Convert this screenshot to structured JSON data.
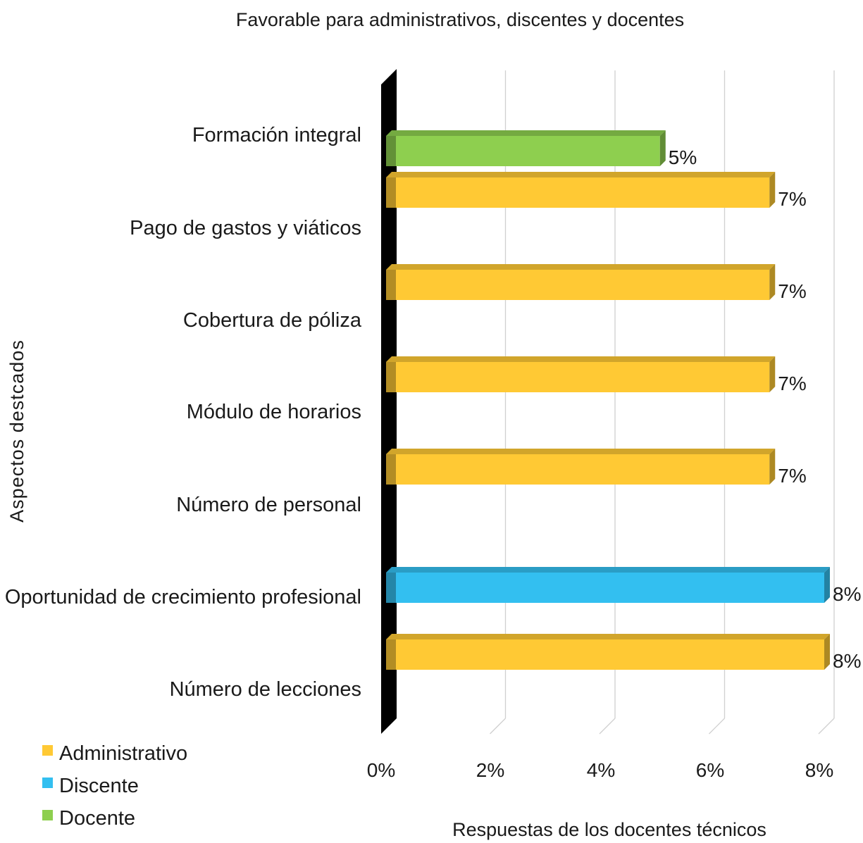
{
  "chart_data": {
    "type": "bar",
    "orientation": "horizontal",
    "title": "Favorable para administrativos, discentes y docentes",
    "xlabel": "Respuestas de los docentes técnicos",
    "ylabel": "Aspectos destcados",
    "xlim": [
      0,
      8
    ],
    "x_ticks": [
      "0%",
      "2%",
      "4%",
      "6%",
      "8%"
    ],
    "grid": "vertical",
    "legend_position": "bottom-left",
    "series": [
      {
        "name": "Administrativo",
        "color": "#FFC934"
      },
      {
        "name": "Discente",
        "color": "#33BFF0"
      },
      {
        "name": "Docente",
        "color": "#8ECF4F"
      }
    ],
    "categories": [
      "Formación integral",
      "Pago de gastos y viáticos",
      "Cobertura de póliza",
      "Módulo de horarios",
      "Número de personal",
      "Oportunidad de crecimiento profesional",
      "Número de lecciones"
    ],
    "bars": [
      {
        "category": "Formación integral",
        "series": "Docente",
        "value": 5,
        "label": "5%"
      },
      {
        "category": "Pago de gastos y viáticos",
        "series": "Administrativo",
        "value": 7,
        "label": "7%"
      },
      {
        "category": "Cobertura de póliza",
        "series": "Administrativo",
        "value": 7,
        "label": "7%"
      },
      {
        "category": "Módulo de horarios",
        "series": "Administrativo",
        "value": 7,
        "label": "7%"
      },
      {
        "category": "Número de personal",
        "series": "Administrativo",
        "value": 7,
        "label": "7%"
      },
      {
        "category": "Oportunidad de crecimiento profesional",
        "series": "Discente",
        "value": 8,
        "label": "8%"
      },
      {
        "category": "Número de lecciones",
        "series": "Administrativo",
        "value": 8,
        "label": "8%"
      }
    ]
  }
}
